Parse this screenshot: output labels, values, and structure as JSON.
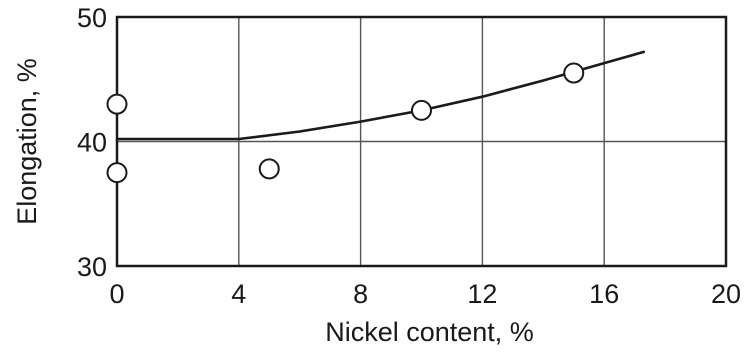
{
  "chart_data": {
    "type": "scatter",
    "title": "",
    "xlabel": "Nickel content, %",
    "ylabel": "Elongation, %",
    "xlim": [
      0,
      20
    ],
    "ylim": [
      30,
      50
    ],
    "xticks": [
      0,
      4,
      8,
      12,
      16,
      20
    ],
    "yticks": [
      30,
      40,
      50
    ],
    "grid": true,
    "series": [
      {
        "kind": "scatter",
        "marker": "open-circle",
        "points": [
          {
            "x": 0,
            "y": 43.0
          },
          {
            "x": 0,
            "y": 37.5
          },
          {
            "x": 5,
            "y": 37.8
          },
          {
            "x": 10,
            "y": 42.5
          },
          {
            "x": 15,
            "y": 45.5
          }
        ]
      },
      {
        "kind": "line",
        "points": [
          {
            "x": 0,
            "y": 40.2
          },
          {
            "x": 4,
            "y": 40.2
          },
          {
            "x": 6,
            "y": 40.8
          },
          {
            "x": 8,
            "y": 41.6
          },
          {
            "x": 10,
            "y": 42.5
          },
          {
            "x": 12,
            "y": 43.6
          },
          {
            "x": 14,
            "y": 44.9
          },
          {
            "x": 16,
            "y": 46.3
          },
          {
            "x": 17.3,
            "y": 47.2
          }
        ]
      }
    ]
  }
}
